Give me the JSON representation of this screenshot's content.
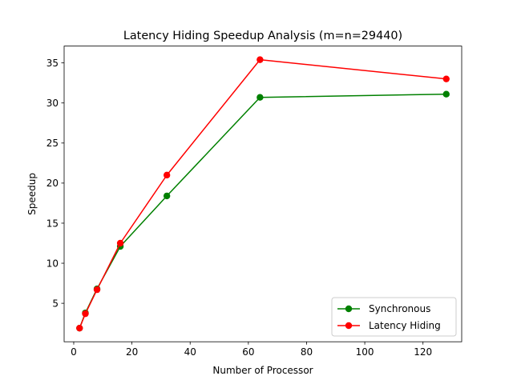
{
  "chart_data": {
    "type": "line",
    "title": "Latency Hiding Speedup Analysis (m=n=29440)",
    "xlabel": "Number of Processor",
    "ylabel": "Speedup",
    "xlim": [
      -3.3,
      133.3
    ],
    "ylim": [
      0.2,
      37.1
    ],
    "xticks": [
      0,
      20,
      40,
      60,
      80,
      100,
      120
    ],
    "yticks": [
      5,
      10,
      15,
      20,
      25,
      30,
      35
    ],
    "x": [
      2,
      4,
      8,
      16,
      32,
      64,
      128
    ],
    "series": [
      {
        "name": "Synchronous",
        "color": "#008000",
        "marker": "circle",
        "values": [
          1.9,
          3.8,
          6.8,
          12.1,
          18.4,
          30.7,
          31.1
        ]
      },
      {
        "name": "Latency Hiding",
        "color": "#ff0000",
        "marker": "circle",
        "values": [
          1.9,
          3.7,
          6.7,
          12.5,
          21.0,
          35.4,
          33.0
        ]
      }
    ],
    "legend": {
      "placement": "lower-right",
      "entries": [
        "Synchronous",
        "Latency Hiding"
      ]
    },
    "grid": false
  }
}
